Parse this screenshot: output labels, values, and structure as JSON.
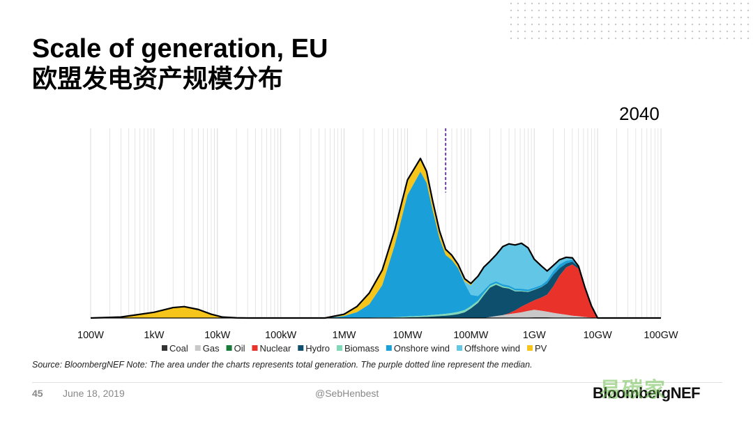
{
  "slide": {
    "title": "Scale of generation, EU",
    "subtitle": "欧盟发电资产规模分布",
    "year_label": "2040",
    "source_note": "Source: BloombergNEF  Note: The area under the charts represents total generation. The purple dotted line represent the median.",
    "page_number": "45",
    "date": "June 18, 2019",
    "handle": "@SebHenbest",
    "logo_text": "BloombergNEF",
    "watermark_text": "易碳家"
  },
  "colors": {
    "coal": "#333333",
    "gas": "#c8c8c8",
    "oil": "#1a7a3a",
    "nuclear": "#e8322a",
    "hydro": "#0e4f6e",
    "biomass": "#7fd8b8",
    "onshore_wind": "#1a9fd9",
    "offshore_wind": "#62c6e6",
    "pv": "#f6c51b",
    "median_line": "#6b3fa0",
    "grid": "#d9d9d9",
    "outline": "#000000"
  },
  "chart_data": {
    "type": "area",
    "x_scale": "log",
    "x_unit": "W",
    "xlim": [
      100,
      100000000000
    ],
    "x_ticks": [
      100,
      1000,
      10000,
      100000,
      1000000,
      10000000,
      100000000,
      1000000000,
      10000000000,
      100000000000
    ],
    "x_tick_labels": [
      "100W",
      "1kW",
      "10kW",
      "100kW",
      "1MW",
      "10MW",
      "100MW",
      "1GW",
      "10GW",
      "100GW"
    ],
    "y_unit": "relative generation (no axis labels shown)",
    "ylim": [
      0,
      1
    ],
    "grid": "vertical minor and major gridlines",
    "legend_position": "bottom",
    "median_W": 40000000,
    "x": [
      100,
      300,
      1000,
      2000,
      3000,
      5000,
      8000,
      12000,
      20000,
      30000,
      100000,
      200000,
      300000,
      500000,
      1000000,
      1600000,
      2500000,
      4000000,
      6300000,
      10000000,
      16000000,
      20000000,
      25000000,
      32000000,
      40000000,
      50000000,
      63000000,
      80000000,
      100000000,
      130000000,
      160000000,
      200000000,
      250000000,
      320000000,
      400000000,
      500000000,
      630000000,
      800000000,
      1000000000,
      1300000000,
      1600000000,
      2000000000,
      2500000000,
      3200000000,
      4000000000,
      5000000000,
      6300000000,
      8000000000,
      10000000000,
      30000000000,
      100000000000
    ],
    "series": [
      {
        "name": "Coal",
        "values": [
          0,
          0,
          0,
          0,
          0,
          0,
          0,
          0,
          0,
          0,
          0,
          0,
          0,
          0,
          0,
          0,
          0,
          0,
          0,
          0,
          0,
          0,
          0,
          0,
          0,
          0,
          0,
          0,
          0,
          0,
          0,
          0,
          0,
          0,
          0,
          0,
          0,
          0.002,
          0.003,
          0.003,
          0.003,
          0.002,
          0.002,
          0.002,
          0.002,
          0.001,
          0,
          0,
          0,
          0,
          0
        ]
      },
      {
        "name": "Gas",
        "values": [
          0,
          0,
          0,
          0,
          0,
          0,
          0,
          0,
          0,
          0,
          0,
          0,
          0,
          0,
          0,
          0,
          0,
          0,
          0,
          0,
          0,
          0,
          0,
          0,
          0,
          0,
          0,
          0,
          0,
          0,
          0,
          0.005,
          0.01,
          0.015,
          0.02,
          0.025,
          0.03,
          0.035,
          0.04,
          0.035,
          0.03,
          0.025,
          0.02,
          0.015,
          0.01,
          0.008,
          0.005,
          0.002,
          0,
          0,
          0
        ]
      },
      {
        "name": "Oil",
        "values": [
          0,
          0,
          0,
          0,
          0,
          0,
          0,
          0,
          0,
          0,
          0,
          0,
          0,
          0,
          0,
          0,
          0,
          0,
          0,
          0,
          0,
          0,
          0,
          0,
          0,
          0,
          0,
          0,
          0,
          0,
          0,
          0,
          0,
          0,
          0,
          0,
          0,
          0,
          0,
          0,
          0,
          0,
          0,
          0,
          0,
          0,
          0,
          0,
          0,
          0,
          0
        ]
      },
      {
        "name": "Nuclear",
        "values": [
          0,
          0,
          0,
          0,
          0,
          0,
          0,
          0,
          0,
          0,
          0,
          0,
          0,
          0,
          0,
          0,
          0,
          0,
          0,
          0,
          0,
          0,
          0,
          0,
          0,
          0,
          0,
          0,
          0,
          0,
          0,
          0,
          0,
          0,
          0.005,
          0.015,
          0.03,
          0.04,
          0.05,
          0.07,
          0.09,
          0.14,
          0.2,
          0.25,
          0.27,
          0.25,
          0.15,
          0.06,
          0,
          0,
          0
        ]
      },
      {
        "name": "Hydro",
        "values": [
          0,
          0,
          0,
          0,
          0,
          0,
          0,
          0,
          0,
          0,
          0,
          0,
          0,
          0,
          0,
          0,
          0,
          0,
          0,
          0.003,
          0.005,
          0.006,
          0.008,
          0.01,
          0.012,
          0.015,
          0.02,
          0.03,
          0.05,
          0.08,
          0.12,
          0.155,
          0.165,
          0.145,
          0.13,
          0.1,
          0.08,
          0.06,
          0.055,
          0.055,
          0.06,
          0.06,
          0.04,
          0.02,
          0.015,
          0.01,
          0.005,
          0.002,
          0,
          0,
          0
        ]
      },
      {
        "name": "Biomass",
        "values": [
          0,
          0,
          0,
          0,
          0,
          0,
          0,
          0,
          0,
          0,
          0,
          0,
          0,
          0,
          0,
          0.001,
          0.002,
          0.003,
          0.004,
          0.005,
          0.006,
          0.007,
          0.008,
          0.009,
          0.01,
          0.011,
          0.012,
          0.012,
          0.012,
          0.011,
          0.01,
          0.009,
          0.008,
          0.007,
          0.006,
          0.005,
          0.004,
          0.003,
          0.002,
          0.001,
          0,
          0,
          0,
          0,
          0,
          0,
          0,
          0,
          0,
          0,
          0
        ]
      },
      {
        "name": "Onshore wind",
        "values": [
          0,
          0,
          0,
          0,
          0,
          0,
          0,
          0,
          0,
          0,
          0,
          0,
          0,
          0,
          0.01,
          0.03,
          0.07,
          0.17,
          0.38,
          0.64,
          0.76,
          0.7,
          0.55,
          0.4,
          0.31,
          0.28,
          0.23,
          0.14,
          0.06,
          0.025,
          0.015,
          0.01,
          0.01,
          0.01,
          0.01,
          0.01,
          0.01,
          0.01,
          0.01,
          0.01,
          0.015,
          0.02,
          0.02,
          0.015,
          0.01,
          0,
          0,
          0,
          0,
          0,
          0
        ]
      },
      {
        "name": "Offshore wind",
        "values": [
          0,
          0,
          0,
          0,
          0,
          0,
          0,
          0,
          0,
          0,
          0,
          0,
          0,
          0,
          0,
          0,
          0,
          0,
          0,
          0,
          0,
          0,
          0,
          0,
          0,
          0,
          0,
          0.01,
          0.05,
          0.1,
          0.12,
          0.12,
          0.14,
          0.2,
          0.22,
          0.23,
          0.24,
          0.22,
          0.15,
          0.1,
          0.05,
          0.03,
          0.025,
          0.018,
          0.01,
          0.004,
          0.002,
          0,
          0,
          0,
          0
        ]
      },
      {
        "name": "PV",
        "values": [
          0,
          0.005,
          0.03,
          0.055,
          0.06,
          0.045,
          0.02,
          0.005,
          0.001,
          0,
          0,
          0,
          0,
          0,
          0.01,
          0.03,
          0.06,
          0.08,
          0.08,
          0.08,
          0.07,
          0.06,
          0.05,
          0.04,
          0.03,
          0.025,
          0.02,
          0.015,
          0.01,
          0.005,
          0.003,
          0,
          0,
          0,
          0,
          0,
          0,
          0,
          0,
          0,
          0,
          0,
          0,
          0,
          0,
          0,
          0,
          0,
          0,
          0,
          0
        ]
      }
    ]
  }
}
